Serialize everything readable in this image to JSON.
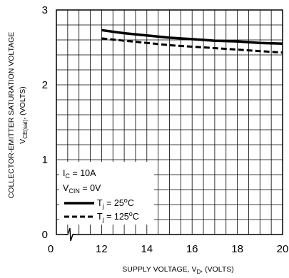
{
  "chart_data": {
    "type": "line",
    "title": "",
    "xlabel": "SUPPLY VOLTAGE, V",
    "xlabel_sub": "D",
    "xlabel_suffix": ", (VOLTS)",
    "ylabel_line1": "COLLECTOR-EMITTER SATURATION VOLTAGE",
    "ylabel_line2_prefix": "V",
    "ylabel_line2_sub": "CE(sat)",
    "ylabel_line2_suffix": ", (VOLTS)",
    "xlim": [
      10,
      20
    ],
    "ylim": [
      0,
      3
    ],
    "x_axis_break": true,
    "grid": true,
    "x_ticks": [
      {
        "value": 0,
        "label": "0"
      },
      {
        "value": 12,
        "label": "12"
      },
      {
        "value": 14,
        "label": "14"
      },
      {
        "value": 16,
        "label": "16"
      },
      {
        "value": 18,
        "label": "18"
      },
      {
        "value": 20,
        "label": "20"
      }
    ],
    "y_ticks": [
      {
        "value": 0,
        "label": "0"
      },
      {
        "value": 1,
        "label": "1"
      },
      {
        "value": 2,
        "label": "2"
      },
      {
        "value": 3,
        "label": "3"
      }
    ],
    "conditions": {
      "ic": {
        "prefix": "I",
        "sub": "C",
        "suffix": " = 10A"
      },
      "vcin": {
        "prefix": "V",
        "sub": "CIN",
        "suffix": " = 0V"
      }
    },
    "legend_placement": "bottom-left",
    "series": [
      {
        "name_prefix": "T",
        "name_sub": "j",
        "name_suffix": " = 25",
        "name_sup": "o",
        "name_unit": "C",
        "style": "solid",
        "x": [
          12,
          13,
          14,
          15,
          16,
          17,
          18,
          19,
          20
        ],
        "values": [
          2.73,
          2.69,
          2.66,
          2.63,
          2.61,
          2.59,
          2.58,
          2.56,
          2.55
        ]
      },
      {
        "name_prefix": "T",
        "name_sub": "j",
        "name_suffix": " = 125",
        "name_sup": "o",
        "name_unit": "C",
        "style": "dashed",
        "x": [
          12,
          13,
          14,
          15,
          16,
          17,
          18,
          19,
          20
        ],
        "values": [
          2.62,
          2.59,
          2.56,
          2.53,
          2.51,
          2.49,
          2.47,
          2.45,
          2.43
        ]
      }
    ]
  }
}
